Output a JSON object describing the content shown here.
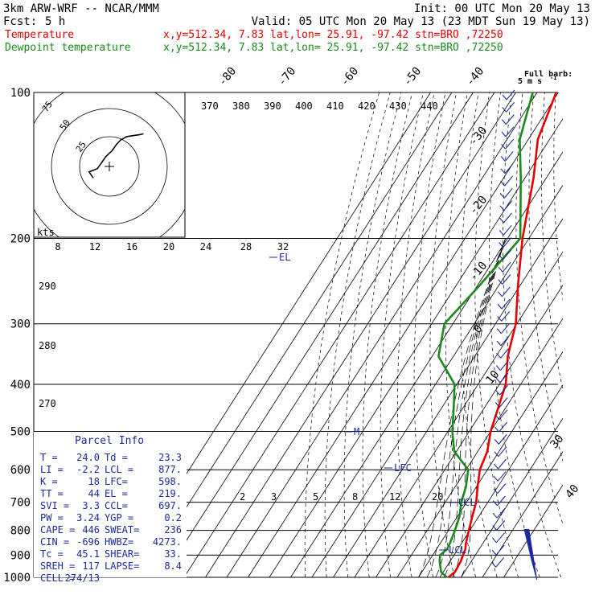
{
  "header": {
    "model": "3km ARW-WRF -- NCAR/MMM",
    "init": "Init: 00 UTC Mon 20 May 13",
    "fcst_label": "Fcst:",
    "fcst_value": "5 h",
    "valid": "Valid: 05 UTC Mon 20 May 13 (23 MDT Sun 19 May 13)",
    "temp_label": "Temperature",
    "temp_info": "x,y=512.34,  7.83   lat,lon= 25.91, -97.42  stn=BRO ,72250",
    "dew_label": "Dewpoint temperature",
    "dew_info": "x,y=512.34,  7.83   lat,lon= 25.91, -97.42  stn=BRO ,72250"
  },
  "colors": {
    "temperature": "#e60000",
    "dewpoint": "#1a8a1a",
    "annotation": "#1c2a9e",
    "text": "#000000"
  },
  "barb_legend": {
    "line1": "Full barb:",
    "line2": "5 m s",
    "exp": "-1"
  },
  "pressure_labels": [
    "100",
    "200",
    "300",
    "400",
    "500",
    "600",
    "700",
    "800",
    "900",
    "1000"
  ],
  "diag_temp_labels": [
    "-80",
    "-70",
    "-60",
    "-50",
    "-40",
    "-30",
    "-20",
    "-10",
    "0",
    "10",
    "30",
    "40"
  ],
  "theta_labels": [
    "370",
    "380",
    "390",
    "400",
    "410",
    "420",
    "430",
    "440"
  ],
  "theta_left_labels": [
    "290",
    "280",
    "270"
  ],
  "mixing_ratio_labels": [
    "2",
    "3",
    "5",
    "8",
    "12",
    "20"
  ],
  "hodograph": {
    "kts_label": "kts",
    "ring_labels": [
      "75",
      "50",
      "25"
    ],
    "speed_labels": [
      "8",
      "12",
      "16",
      "20",
      "24",
      "28",
      "32"
    ]
  },
  "annotations": {
    "el": "EL",
    "lfc": "LFC",
    "ccl": "CCL",
    "lcl": "LCL",
    "m": "M"
  },
  "parcel": {
    "title": "Parcel Info",
    "rows": [
      [
        "T  =",
        "24.0",
        "Td =",
        "23.3"
      ],
      [
        "LI =",
        "-2.2",
        "LCL =",
        "877."
      ],
      [
        "K  =",
        "18",
        "LFC=",
        "598."
      ],
      [
        "TT =",
        "44",
        "EL =",
        "219."
      ],
      [
        "SVI =",
        "3.3",
        "CCL=",
        "697."
      ],
      [
        "PW =",
        "3.24",
        "YGP =",
        "0.2"
      ],
      [
        "CAPE =",
        "446",
        "SWEAT=",
        "236"
      ],
      [
        "CIN =",
        "-696",
        "HWBZ=",
        "4273."
      ],
      [
        "Tc =",
        "45.1",
        "SHEAR=",
        "33."
      ],
      [
        "SREH =",
        "117",
        "LAPSE=",
        "8.4"
      ],
      [
        "CELL =",
        "274/13",
        "",
        ""
      ]
    ]
  },
  "chart_data": {
    "type": "line",
    "subtype": "skew-T log-P sounding",
    "x_unit": "degC",
    "y_unit": "hPa",
    "y_scale": "log",
    "ylim": [
      1000,
      100
    ],
    "series": [
      {
        "name": "Temperature",
        "points": [
          [
            24.0,
            1000
          ],
          [
            25.5,
            975
          ],
          [
            25.0,
            925
          ],
          [
            24.2,
            900
          ],
          [
            23.5,
            875
          ],
          [
            22.0,
            850
          ],
          [
            19.5,
            800
          ],
          [
            17.0,
            750
          ],
          [
            14.5,
            700
          ],
          [
            10.5,
            650
          ],
          [
            6.5,
            600
          ],
          [
            4.5,
            550
          ],
          [
            0.0,
            500
          ],
          [
            -7.0,
            400
          ],
          [
            -14.5,
            350
          ],
          [
            -20.5,
            300
          ],
          [
            -31.0,
            250
          ],
          [
            -43.0,
            200
          ],
          [
            -56.0,
            150
          ],
          [
            -65.5,
            125
          ],
          [
            -71.0,
            100
          ]
        ]
      },
      {
        "name": "Dewpoint temperature",
        "points": [
          [
            23.3,
            1000
          ],
          [
            19.0,
            975
          ],
          [
            17.0,
            950
          ],
          [
            15.0,
            925
          ],
          [
            13.5,
            900
          ],
          [
            15.0,
            875
          ],
          [
            14.5,
            850
          ],
          [
            13.0,
            800
          ],
          [
            11.0,
            750
          ],
          [
            7.5,
            700
          ],
          [
            5.0,
            650
          ],
          [
            1.0,
            600
          ],
          [
            -11.0,
            550
          ],
          [
            -18.0,
            500
          ],
          [
            -24.0,
            450
          ],
          [
            -31.0,
            400
          ],
          [
            -47.0,
            350
          ],
          [
            -54.0,
            300
          ],
          [
            -49.0,
            250
          ],
          [
            -44.0,
            200
          ],
          [
            -62.0,
            150
          ],
          [
            -74.0,
            125
          ],
          [
            -82.0,
            100
          ]
        ]
      }
    ],
    "hodograph_kts": [
      [
        0,
        38
      ],
      [
        -2,
        33
      ],
      [
        2,
        30
      ],
      [
        4,
        25
      ],
      [
        6,
        20
      ],
      [
        9,
        15
      ],
      [
        11,
        10
      ],
      [
        13,
        6
      ],
      [
        16,
        3
      ],
      [
        19,
        2
      ],
      [
        22,
        1
      ],
      [
        24,
        0
      ]
    ]
  }
}
